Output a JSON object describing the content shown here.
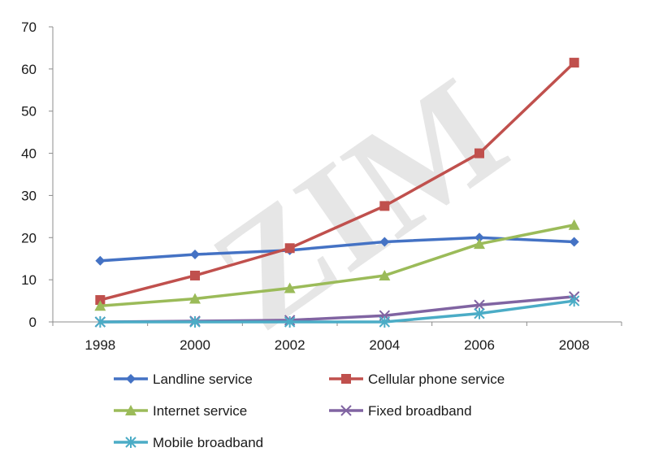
{
  "watermark": {
    "text": "ZIM"
  },
  "chart_data": {
    "type": "line",
    "title": "",
    "xlabel": "",
    "ylabel": "",
    "x": [
      "1998",
      "2000",
      "2002",
      "2004",
      "2006",
      "2008"
    ],
    "ylim": [
      0,
      70
    ],
    "yticks": [
      0,
      10,
      20,
      30,
      40,
      50,
      60,
      70
    ],
    "grid": false,
    "legend_position": "bottom",
    "series": [
      {
        "name": "Landline service",
        "color": "#4472C4",
        "marker": "diamond",
        "values": [
          14.5,
          16.0,
          17.0,
          19.0,
          20.0,
          19.0
        ]
      },
      {
        "name": "Cellular phone service",
        "color": "#C0504D",
        "marker": "square",
        "values": [
          5.2,
          11.0,
          17.5,
          27.5,
          40.0,
          61.5
        ]
      },
      {
        "name": "Internet service",
        "color": "#9BBB59",
        "marker": "triangle",
        "values": [
          3.8,
          5.5,
          8.0,
          11.0,
          18.5,
          23.0
        ]
      },
      {
        "name": "Fixed broadband",
        "color": "#8064A2",
        "marker": "x",
        "values": [
          0,
          0.2,
          0.4,
          1.5,
          4.0,
          6.0
        ]
      },
      {
        "name": "Mobile broadband",
        "color": "#4BACC6",
        "marker": "asterisk",
        "values": [
          0,
          0,
          0,
          0,
          2.0,
          5.0
        ]
      }
    ]
  }
}
